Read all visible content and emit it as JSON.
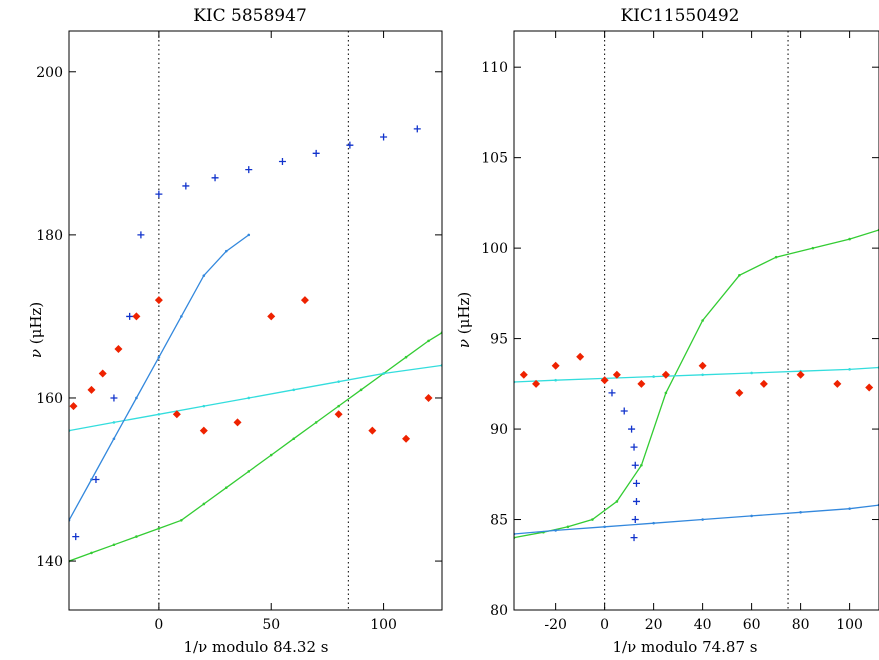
{
  "chart_data": [
    {
      "type": "scatter",
      "title": "KIC 5858947",
      "xlabel": "1/ν  modulo  84.32 s",
      "ylabel": "ν (μHz)",
      "ylabel_main": "ν",
      "ylabel_unit": "(μHz)",
      "xlim": [
        -40,
        126
      ],
      "ylim": [
        134,
        205
      ],
      "xticks": [
        0,
        50,
        100
      ],
      "yticks": [
        140,
        160,
        180,
        200
      ],
      "vlines": [
        0,
        84.32
      ],
      "period_spacing": 84.32,
      "grid": false,
      "series": [
        {
          "role": "model-branch",
          "color": "#33cc33",
          "x": [
            -40,
            -30,
            -20,
            -10,
            0,
            10,
            20,
            30,
            40,
            50,
            60,
            70,
            80,
            90,
            100,
            110,
            120,
            126
          ],
          "y": [
            140,
            141,
            142,
            143,
            144,
            145,
            147,
            149,
            151,
            153,
            155,
            157,
            159,
            161,
            163,
            165,
            167,
            168
          ]
        },
        {
          "role": "model-branch",
          "color": "#33dddd",
          "x": [
            -40,
            -20,
            0,
            20,
            40,
            60,
            80,
            100,
            126
          ],
          "y": [
            156,
            157,
            158,
            159,
            160,
            161,
            162,
            163,
            164
          ]
        },
        {
          "role": "model-branch",
          "color": "#3388dd",
          "x": [
            -40,
            -30,
            -20,
            -10,
            0,
            10,
            20,
            30,
            40
          ],
          "y": [
            145,
            150,
            155,
            160,
            165,
            170,
            175,
            178,
            180
          ]
        },
        {
          "role": "observed",
          "color": "#1133cc",
          "marker": "+",
          "x": [
            -37,
            -28,
            -20,
            -13,
            -8,
            0,
            12,
            25,
            40,
            55,
            70,
            85,
            100,
            115
          ],
          "y": [
            143,
            150,
            160,
            170,
            180,
            185,
            186,
            187,
            188,
            189,
            190,
            191,
            192,
            193
          ]
        },
        {
          "role": "observed",
          "color": "#ee2200",
          "marker": "diamond",
          "x": [
            -38,
            -30,
            -25,
            -18,
            -10,
            0,
            8,
            20,
            35,
            50,
            65,
            80,
            95,
            110,
            120
          ],
          "y": [
            159,
            161,
            163,
            166,
            170,
            172,
            158,
            156,
            157,
            170,
            172,
            158,
            156,
            155,
            160
          ]
        }
      ]
    },
    {
      "type": "scatter",
      "title": "KIC11550492",
      "xlabel": "1/ν  modulo  74.87 s",
      "ylabel": "ν (μHz)",
      "ylabel_main": "ν",
      "ylabel_unit": "(μHz)",
      "xlim": [
        -37,
        112
      ],
      "ylim": [
        80,
        112
      ],
      "xticks": [
        -20,
        0,
        20,
        40,
        60,
        80,
        100
      ],
      "yticks": [
        80,
        85,
        90,
        95,
        100,
        105,
        110
      ],
      "vlines": [
        0,
        74.87
      ],
      "period_spacing": 74.87,
      "grid": false,
      "series": [
        {
          "role": "model-branch",
          "color": "#33cc33",
          "x": [
            -37,
            -25,
            -15,
            -5,
            5,
            15,
            25,
            40,
            55,
            70,
            85,
            100,
            112
          ],
          "y": [
            84,
            84.3,
            84.6,
            85,
            86,
            88,
            92,
            96,
            98.5,
            99.5,
            100,
            100.5,
            101
          ]
        },
        {
          "role": "model-branch",
          "color": "#33dddd",
          "x": [
            -37,
            -20,
            0,
            20,
            40,
            60,
            80,
            100,
            112
          ],
          "y": [
            92.6,
            92.7,
            92.8,
            92.9,
            93,
            93.1,
            93.2,
            93.3,
            93.4
          ]
        },
        {
          "role": "model-branch",
          "color": "#3388dd",
          "x": [
            -37,
            -20,
            0,
            20,
            40,
            60,
            80,
            100,
            112
          ],
          "y": [
            84.2,
            84.4,
            84.6,
            84.8,
            85,
            85.2,
            85.4,
            85.6,
            85.8
          ]
        },
        {
          "role": "observed",
          "color": "#1133cc",
          "marker": "+",
          "x": [
            12,
            12.5,
            13,
            13,
            12.5,
            12,
            11,
            8,
            3,
            0
          ],
          "y": [
            84,
            85,
            86,
            87,
            88,
            89,
            90,
            91,
            92,
            92.7
          ]
        },
        {
          "role": "observed",
          "color": "#ee2200",
          "marker": "diamond",
          "x": [
            -33,
            -28,
            -20,
            -10,
            0,
            5,
            15,
            25,
            40,
            55,
            65,
            80,
            95,
            108
          ],
          "y": [
            93,
            92.5,
            93.5,
            94,
            92.7,
            93,
            92.5,
            93,
            93.5,
            92,
            92.5,
            93,
            92.5,
            92.3
          ]
        }
      ]
    }
  ]
}
